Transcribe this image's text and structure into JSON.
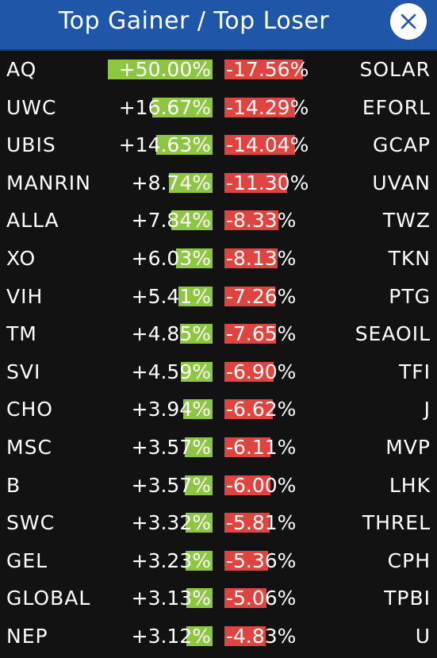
{
  "header": {
    "title": "Top Gainer / Top Loser",
    "close_icon": "close-icon"
  },
  "colors": {
    "header_bg": "#1f56a8",
    "gainer_bar": "#8dc641",
    "loser_bar": "#e0443f",
    "background": "#121212"
  },
  "rows": [
    {
      "gainer": "AQ",
      "gain": "+50.00%",
      "gain_value": 50.0,
      "loss": "-17.56%",
      "loss_value": 17.56,
      "loser": "SOLAR"
    },
    {
      "gainer": "UWC",
      "gain": "+16.67%",
      "gain_value": 16.67,
      "loss": "-14.29%",
      "loss_value": 14.29,
      "loser": "EFORL"
    },
    {
      "gainer": "UBIS",
      "gain": "+14.63%",
      "gain_value": 14.63,
      "loss": "-14.04%",
      "loss_value": 14.04,
      "loser": "GCAP"
    },
    {
      "gainer": "MANRIN",
      "gain": "+8.74%",
      "gain_value": 8.74,
      "loss": "-11.30%",
      "loss_value": 11.3,
      "loser": "UVAN"
    },
    {
      "gainer": "ALLA",
      "gain": "+7.84%",
      "gain_value": 7.84,
      "loss": "-8.33%",
      "loss_value": 8.33,
      "loser": "TWZ"
    },
    {
      "gainer": "XO",
      "gain": "+6.03%",
      "gain_value": 6.03,
      "loss": "-8.13%",
      "loss_value": 8.13,
      "loser": "TKN"
    },
    {
      "gainer": "VIH",
      "gain": "+5.41%",
      "gain_value": 5.41,
      "loss": "-7.26%",
      "loss_value": 7.26,
      "loser": "PTG"
    },
    {
      "gainer": "TM",
      "gain": "+4.85%",
      "gain_value": 4.85,
      "loss": "-7.65%",
      "loss_value": 7.65,
      "loser": "SEAOIL"
    },
    {
      "gainer": "SVI",
      "gain": "+4.59%",
      "gain_value": 4.59,
      "loss": "-6.90%",
      "loss_value": 6.9,
      "loser": "TFI"
    },
    {
      "gainer": "CHO",
      "gain": "+3.94%",
      "gain_value": 3.94,
      "loss": "-6.62%",
      "loss_value": 6.62,
      "loser": "J"
    },
    {
      "gainer": "MSC",
      "gain": "+3.57%",
      "gain_value": 3.57,
      "loss": "-6.11%",
      "loss_value": 6.11,
      "loser": "MVP"
    },
    {
      "gainer": "B",
      "gain": "+3.57%",
      "gain_value": 3.57,
      "loss": "-6.00%",
      "loss_value": 6.0,
      "loser": "LHK"
    },
    {
      "gainer": "SWC",
      "gain": "+3.32%",
      "gain_value": 3.32,
      "loss": "-5.81%",
      "loss_value": 5.81,
      "loser": "THREL"
    },
    {
      "gainer": "GEL",
      "gain": "+3.23%",
      "gain_value": 3.23,
      "loss": "-5.36%",
      "loss_value": 5.36,
      "loser": "CPH"
    },
    {
      "gainer": "GLOBAL",
      "gain": "+3.13%",
      "gain_value": 3.13,
      "loss": "-5.06%",
      "loss_value": 5.06,
      "loser": "TPBI"
    },
    {
      "gainer": "NEP",
      "gain": "+3.12%",
      "gain_value": 3.12,
      "loss": "-4.83%",
      "loss_value": 4.83,
      "loser": "U"
    }
  ]
}
